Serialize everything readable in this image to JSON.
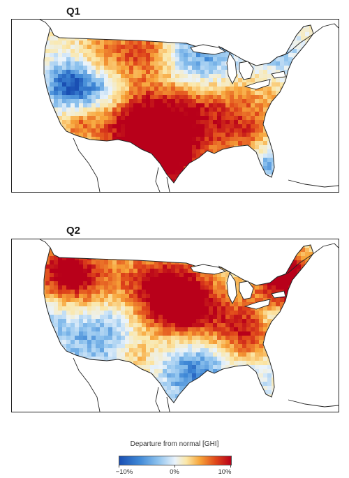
{
  "panels": [
    {
      "title": "Q1",
      "pattern": "hot-south-central"
    },
    {
      "title": "Q2",
      "pattern": "hot-north-central"
    }
  ],
  "legend": {
    "title": "Departure from normal [GHI]",
    "ticks": [
      "−10%",
      "0%",
      "10%"
    ],
    "colors": [
      "#1a4fb3",
      "#3f88d6",
      "#8fc3ee",
      "#eaf3fb",
      "#fbe7a8",
      "#f7a53a",
      "#e0491b",
      "#b8001a"
    ]
  }
}
